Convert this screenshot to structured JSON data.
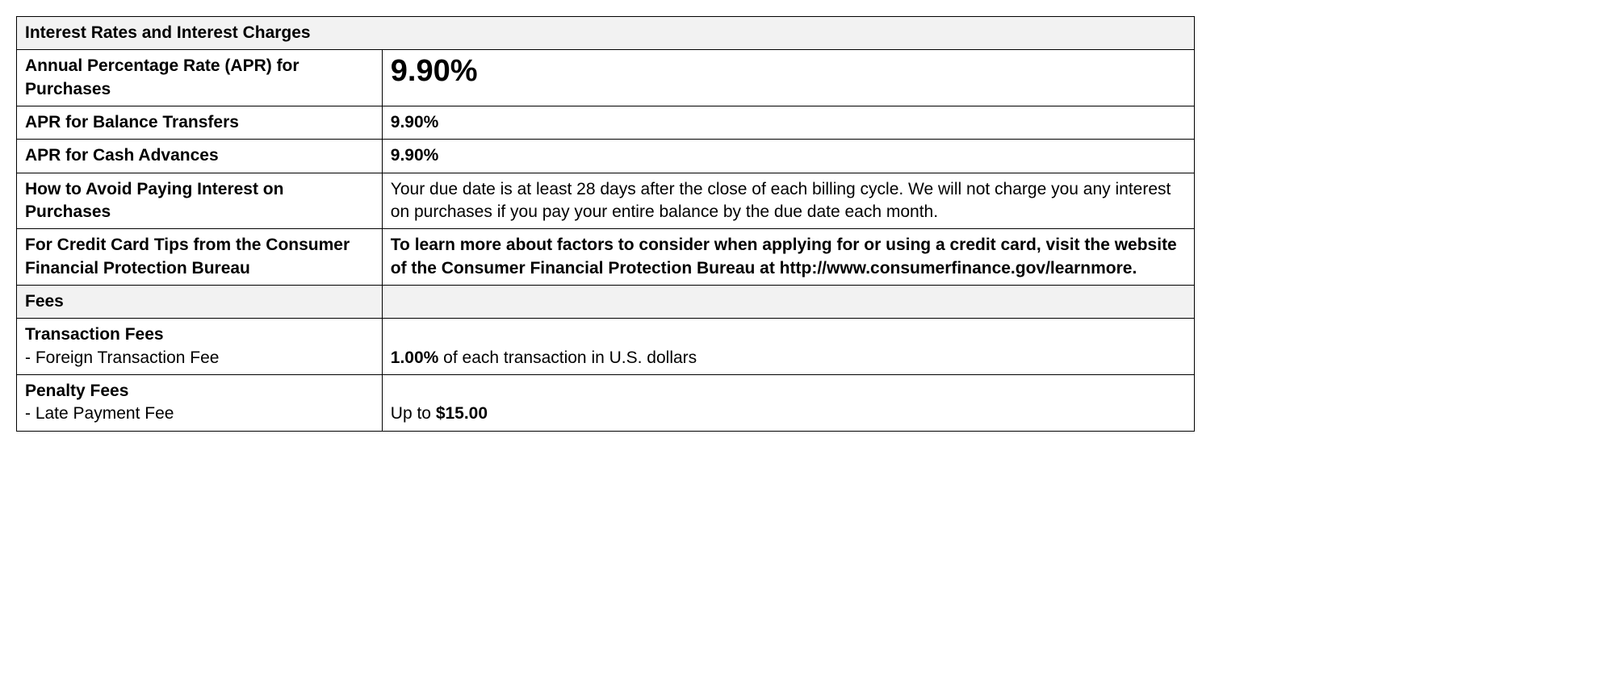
{
  "section1": {
    "title": "Interest Rates and Interest Charges"
  },
  "apr_purchases": {
    "label": "Annual Percentage Rate (APR) for Purchases",
    "value": "9.90%"
  },
  "apr_balance": {
    "label": "APR for Balance Transfers",
    "value": "9.90%"
  },
  "apr_cash": {
    "label": "APR for Cash Advances",
    "value": "9.90%"
  },
  "avoid_interest": {
    "label": "How to Avoid Paying Interest on Purchases",
    "text": "Your due date is at least 28 days after the close of each billing cycle. We will not charge you any interest on purchases if you pay your entire balance by the due date each month."
  },
  "cfpb_tips": {
    "label": "For Credit Card Tips from the Consumer Financial Protection Bureau",
    "text": "To learn more about factors to consider when applying for or using a credit card, visit the website of the Consumer Financial Protection Bureau at http://www.consumerfinance.gov/learnmore."
  },
  "section2": {
    "title": "Fees"
  },
  "transaction_fees": {
    "heading": "Transaction Fees",
    "item_label": "- Foreign Transaction Fee",
    "value_bold": "1.00%",
    "value_rest": " of each transaction in U.S. dollars"
  },
  "penalty_fees": {
    "heading": "Penalty Fees",
    "item_label": "- Late Payment Fee",
    "value_prefix": "Up to ",
    "value_bold": "$15.00"
  }
}
